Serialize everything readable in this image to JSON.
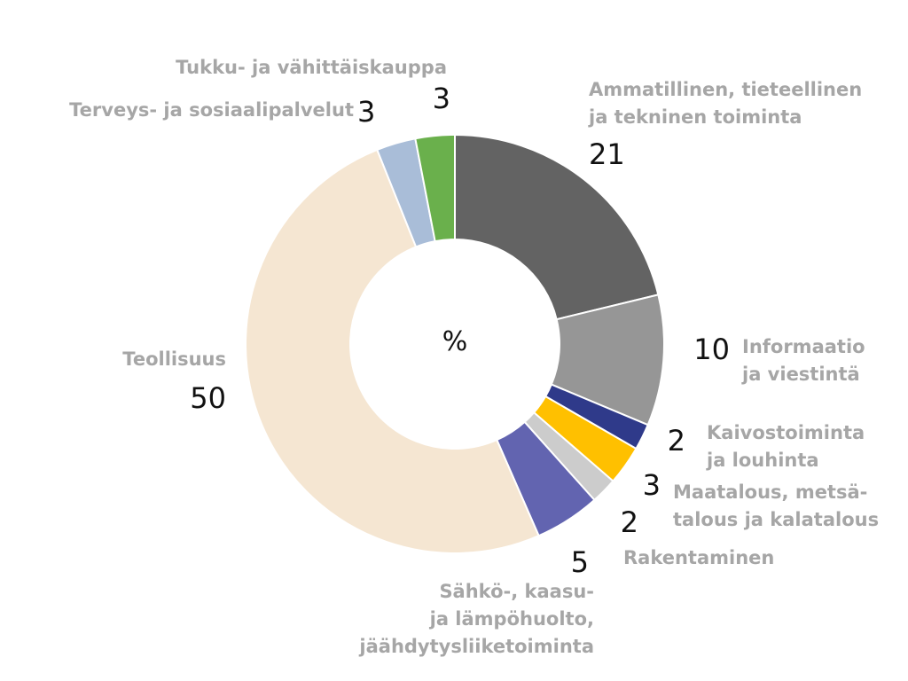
{
  "chart_data": {
    "type": "pie",
    "center_label": "%",
    "slices": [
      {
        "label_lines": [
          "Ammatillinen, tieteellinen",
          "ja tekninen toiminta"
        ],
        "value": 21,
        "color": "#636363"
      },
      {
        "label_lines": [
          "Informaatio",
          "ja viestintä"
        ],
        "value": 10,
        "color": "#969696"
      },
      {
        "label_lines": [
          "Kaivostoiminta",
          "ja louhinta"
        ],
        "value": 2,
        "color": "#2f3a8a"
      },
      {
        "label_lines": [
          "Maatalous, metsä-",
          "talous ja kalatalous"
        ],
        "value": 3,
        "color": "#ffc000"
      },
      {
        "label_lines": [
          "Rakentaminen"
        ],
        "value": 2,
        "color": "#cccccc"
      },
      {
        "label_lines": [
          "Sähkö-, kaasu-",
          "ja lämpöhuolto,",
          "jäähdytysliiketoiminta"
        ],
        "value": 5,
        "color": "#6264b0"
      },
      {
        "label_lines": [
          "Teollisuus"
        ],
        "value": 50,
        "color": "#f5e6d2"
      },
      {
        "label_lines": [
          "Terveys- ja sosiaalipalvelut"
        ],
        "value": 3,
        "color": "#a9bdd8"
      },
      {
        "label_lines": [
          "Tukku- ja vähittäiskauppa"
        ],
        "value": 3,
        "color": "#6ab04c"
      }
    ]
  }
}
